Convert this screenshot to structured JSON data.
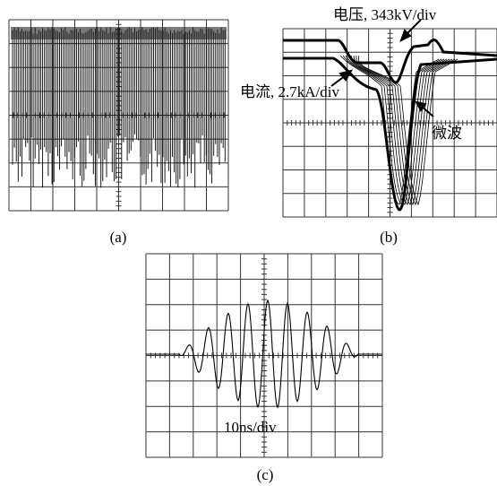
{
  "panels": [
    {
      "label": "(a)"
    },
    {
      "label": "(b)",
      "annotations": [
        "电压, 343kV/div",
        "电流, 2.7kA/div",
        "微波"
      ]
    },
    {
      "label": "(c)",
      "annotations": [
        "10ns/div"
      ]
    }
  ]
}
